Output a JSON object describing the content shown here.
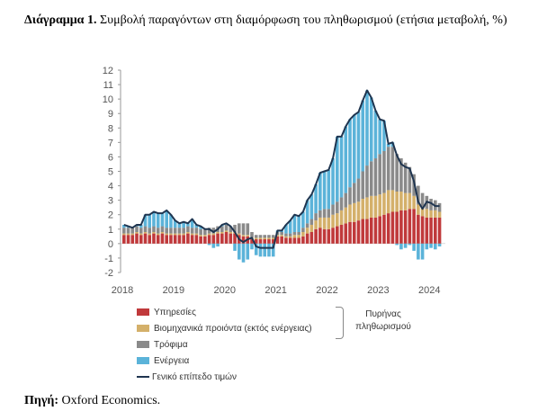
{
  "title": {
    "label": "Διάγραμμα 1.",
    "text": "Συμβολή παραγόντων στη διαμόρφωση του πληθωρισμού (ετήσια μεταβολή, %)"
  },
  "source": {
    "label": "Πηγή:",
    "text": "Oxford Economics."
  },
  "chart_data": {
    "type": "bar",
    "stacked": true,
    "frequency": "monthly",
    "start": "2018-01",
    "end": "2024-03",
    "x_tick_labels": [
      "2018",
      "2019",
      "2020",
      "2021",
      "2022",
      "2023",
      "2024"
    ],
    "y_tick_labels": [
      "12",
      "11",
      "10",
      "9",
      "8",
      "7",
      "6",
      "5",
      "4",
      "3",
      "2",
      "1",
      "0",
      "-1",
      "-2"
    ],
    "ylim": [
      -2,
      12
    ],
    "colors": {
      "services": "#c0393b",
      "goods": "#d4b06a",
      "food": "#8a8a8a",
      "energy": "#5bb3d9",
      "total": "#1f3550"
    },
    "series": [
      {
        "key": "services",
        "name": "Υπηρεσίες",
        "values": [
          0.6,
          0.6,
          0.6,
          0.7,
          0.6,
          0.7,
          0.6,
          0.7,
          0.6,
          0.7,
          0.6,
          0.6,
          0.6,
          0.6,
          0.6,
          0.7,
          0.6,
          0.6,
          0.5,
          0.5,
          0.6,
          0.6,
          0.7,
          0.7,
          0.8,
          0.7,
          0.7,
          0.6,
          0.5,
          0.5,
          0.3,
          0.3,
          0.3,
          0.3,
          0.3,
          0.3,
          0.5,
          0.5,
          0.4,
          0.4,
          0.4,
          0.4,
          0.5,
          0.7,
          0.8,
          1.0,
          1.1,
          1.0,
          1.0,
          1.1,
          1.2,
          1.3,
          1.4,
          1.5,
          1.5,
          1.6,
          1.7,
          1.7,
          1.8,
          1.8,
          1.9,
          2.0,
          2.1,
          2.2,
          2.2,
          2.3,
          2.3,
          2.4,
          2.4,
          2.0,
          1.9,
          1.8,
          1.8,
          1.8,
          1.8
        ]
      },
      {
        "key": "goods",
        "name": "Βιομηχανικά προιόντα (εκτός ενέργειας)",
        "values": [
          0.1,
          0.1,
          0.1,
          0.1,
          0.1,
          0.1,
          0.1,
          0.1,
          0.1,
          0.1,
          0.1,
          0.1,
          0.1,
          0.1,
          0.1,
          0.1,
          0.1,
          0.1,
          0.1,
          0.1,
          0.1,
          0.1,
          0.1,
          0.1,
          0.1,
          0.1,
          0.1,
          0.1,
          0.1,
          0.1,
          0.1,
          0.1,
          0.1,
          0.1,
          0.1,
          0.1,
          0.1,
          0.1,
          0.1,
          0.1,
          0.2,
          0.2,
          0.3,
          0.4,
          0.5,
          0.6,
          0.7,
          0.8,
          0.8,
          0.9,
          0.9,
          1.0,
          1.1,
          1.2,
          1.3,
          1.3,
          1.4,
          1.5,
          1.5,
          1.5,
          1.5,
          1.5,
          1.6,
          1.5,
          1.4,
          1.3,
          1.2,
          1.1,
          0.9,
          0.7,
          0.6,
          0.6,
          0.5,
          0.5,
          0.4
        ]
      },
      {
        "key": "food",
        "name": "Τρόφιμα",
        "values": [
          0.4,
          0.4,
          0.4,
          0.4,
          0.4,
          0.4,
          0.4,
          0.4,
          0.4,
          0.4,
          0.4,
          0.4,
          0.4,
          0.4,
          0.4,
          0.4,
          0.4,
          0.4,
          0.4,
          0.4,
          0.4,
          0.4,
          0.4,
          0.4,
          0.4,
          0.4,
          0.5,
          0.7,
          0.8,
          0.8,
          0.4,
          0.2,
          0.2,
          0.2,
          0.2,
          0.2,
          0.2,
          0.2,
          0.2,
          0.2,
          0.2,
          0.2,
          0.3,
          0.3,
          0.4,
          0.5,
          0.5,
          0.6,
          0.6,
          0.7,
          0.8,
          0.9,
          1.0,
          1.2,
          1.4,
          1.6,
          1.9,
          2.2,
          2.4,
          2.6,
          2.8,
          2.9,
          3.0,
          3.0,
          2.6,
          2.3,
          2.1,
          1.8,
          1.5,
          1.3,
          1.0,
          0.9,
          0.8,
          0.7,
          0.6
        ]
      },
      {
        "key": "energy",
        "name": "Ενέργεια",
        "values": [
          0.2,
          0.1,
          0.0,
          0.1,
          0.2,
          0.8,
          0.9,
          1.0,
          1.0,
          0.9,
          1.2,
          0.9,
          0.5,
          0.3,
          0.4,
          0.2,
          0.6,
          0.2,
          0.2,
          0.0,
          -0.1,
          -0.3,
          -0.2,
          0.1,
          0.1,
          0.0,
          -0.5,
          -1.1,
          -1.3,
          -1.1,
          -0.4,
          -0.8,
          -0.9,
          -0.9,
          -0.9,
          -0.9,
          0.1,
          0.1,
          0.6,
          0.9,
          1.2,
          1.1,
          1.1,
          1.6,
          1.7,
          2.0,
          2.6,
          2.6,
          2.7,
          3.2,
          4.5,
          4.2,
          4.6,
          4.7,
          4.7,
          4.6,
          4.9,
          5.2,
          4.4,
          3.3,
          2.4,
          2.1,
          0.2,
          0.3,
          -0.1,
          -0.4,
          -0.3,
          -0.1,
          -0.5,
          -1.1,
          -1.1,
          -0.4,
          -0.3,
          -0.4,
          -0.2
        ]
      },
      {
        "key": "total",
        "name": "Γενικό επίπεδο τιμών",
        "type": "line",
        "values": [
          1.3,
          1.2,
          1.1,
          1.3,
          1.3,
          2.0,
          2.0,
          2.2,
          2.1,
          2.1,
          2.3,
          2.0,
          1.6,
          1.4,
          1.5,
          1.4,
          1.7,
          1.3,
          1.2,
          1.0,
          1.0,
          0.8,
          1.0,
          1.3,
          1.4,
          1.2,
          0.8,
          0.3,
          0.1,
          0.3,
          0.4,
          -0.2,
          -0.3,
          -0.3,
          -0.3,
          -0.3,
          0.9,
          0.9,
          1.3,
          1.6,
          2.0,
          1.9,
          2.2,
          3.0,
          3.4,
          4.1,
          4.9,
          5.0,
          5.1,
          5.9,
          7.4,
          7.4,
          8.1,
          8.6,
          8.9,
          9.1,
          9.9,
          10.6,
          10.1,
          9.2,
          8.6,
          8.5,
          6.9,
          7.0,
          6.1,
          5.5,
          5.3,
          5.2,
          4.3,
          2.9,
          2.4,
          2.9,
          2.8,
          2.6,
          2.6
        ]
      }
    ],
    "annotation": {
      "text_1": "Πυρήνας",
      "text_2": "πληθωρισμού",
      "covers": [
        "services",
        "goods"
      ]
    },
    "legend_position": "bottom-left",
    "grid": false
  }
}
